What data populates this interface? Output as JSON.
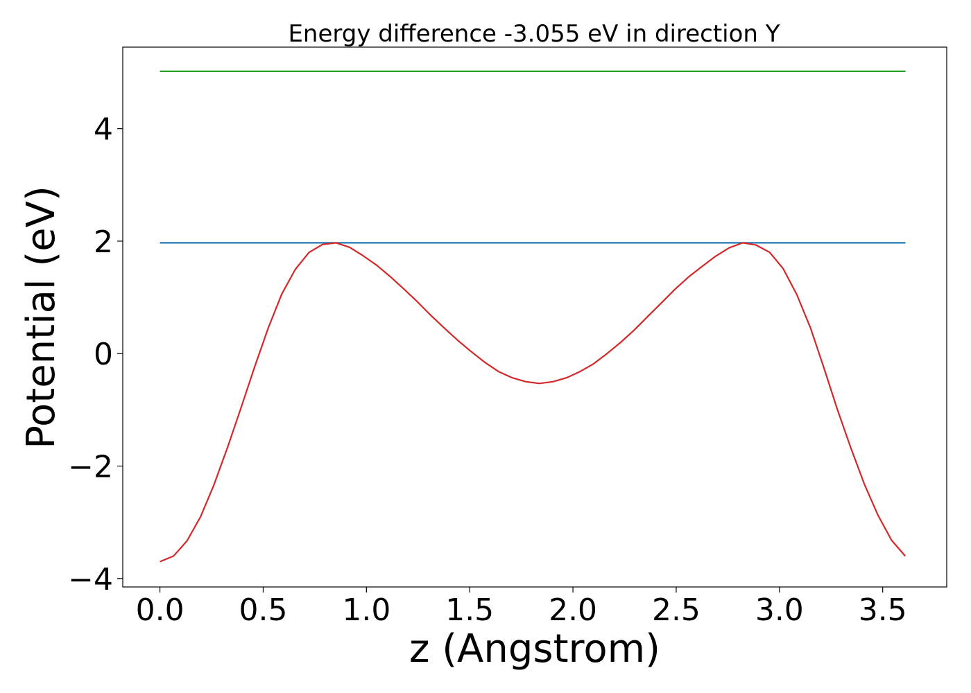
{
  "chart_data": {
    "type": "line",
    "title": "Energy difference -3.055 eV in direction Y",
    "xlabel": "z (Angstrom)",
    "ylabel": "Potential (eV)",
    "xlim": [
      -0.18,
      3.81
    ],
    "ylim": [
      -4.15,
      5.45
    ],
    "x_ticks": [
      0.0,
      0.5,
      1.0,
      1.5,
      2.0,
      2.5,
      3.0,
      3.5
    ],
    "x_tick_labels": [
      "0.0",
      "0.5",
      "1.0",
      "1.5",
      "2.0",
      "2.5",
      "3.0",
      "3.5"
    ],
    "y_ticks": [
      -4,
      -2,
      0,
      2,
      4
    ],
    "y_tick_labels": [
      "−4",
      "−2",
      "0",
      "2",
      "4"
    ],
    "grid": false,
    "series": [
      {
        "color": "#2ca02c",
        "x": [
          0.0,
          3.61
        ],
        "y": [
          5.02,
          5.02
        ]
      },
      {
        "color": "#1f77b4",
        "x": [
          0.0,
          3.61
        ],
        "y": [
          1.97,
          1.97
        ]
      },
      {
        "color": "#d62728",
        "x": [
          0.0,
          0.066,
          0.131,
          0.197,
          0.262,
          0.328,
          0.394,
          0.459,
          0.525,
          0.59,
          0.656,
          0.722,
          0.787,
          0.853,
          0.919,
          0.984,
          1.05,
          1.115,
          1.181,
          1.247,
          1.312,
          1.378,
          1.444,
          1.509,
          1.575,
          1.64,
          1.706,
          1.772,
          1.837,
          1.903,
          1.969,
          2.034,
          2.1,
          2.165,
          2.231,
          2.297,
          2.362,
          2.428,
          2.493,
          2.559,
          2.625,
          2.69,
          2.756,
          2.822,
          2.887,
          2.953,
          3.018,
          3.084,
          3.15,
          3.215,
          3.281,
          3.347,
          3.412,
          3.478,
          3.543,
          3.609
        ],
        "y": [
          -3.7,
          -3.6,
          -3.33,
          -2.9,
          -2.33,
          -1.66,
          -0.95,
          -0.23,
          0.46,
          1.06,
          1.5,
          1.8,
          1.94,
          1.97,
          1.89,
          1.74,
          1.57,
          1.37,
          1.15,
          0.92,
          0.68,
          0.45,
          0.23,
          0.03,
          -0.16,
          -0.32,
          -0.43,
          -0.5,
          -0.53,
          -0.5,
          -0.43,
          -0.32,
          -0.18,
          0.0,
          0.2,
          0.42,
          0.66,
          0.9,
          1.14,
          1.36,
          1.55,
          1.73,
          1.88,
          1.97,
          1.93,
          1.8,
          1.51,
          1.05,
          0.46,
          -0.25,
          -1.0,
          -1.69,
          -2.33,
          -2.88,
          -3.32,
          -3.6
        ]
      }
    ]
  }
}
